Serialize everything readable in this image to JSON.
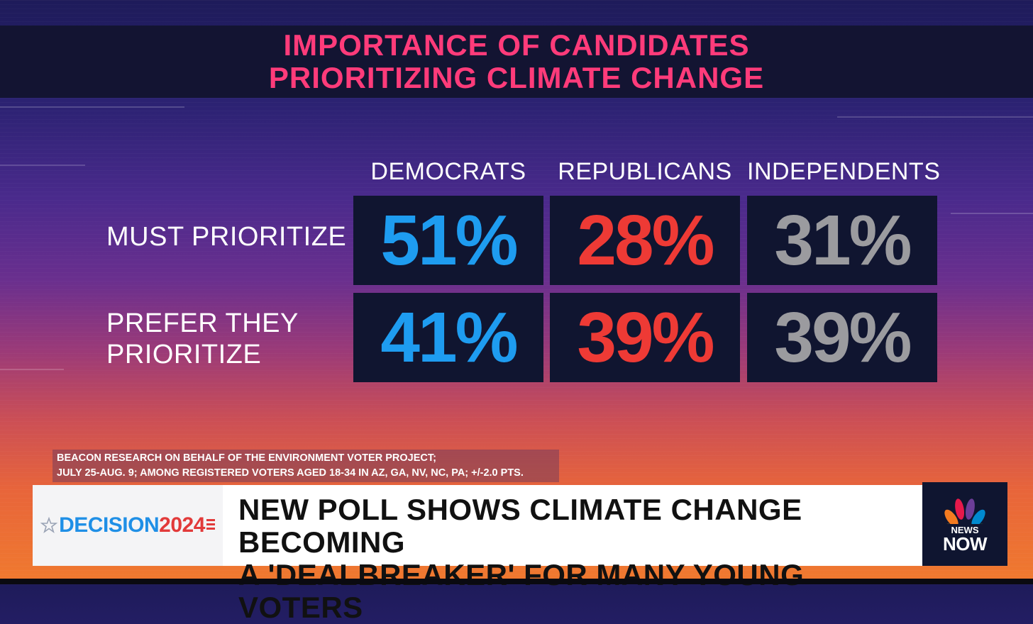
{
  "title": {
    "line1": "IMPORTANCE OF CANDIDATES",
    "line2": "PRIORITIZING CLIMATE CHANGE",
    "color": "#ff3b7a"
  },
  "chart_data": {
    "type": "table",
    "title": "IMPORTANCE OF CANDIDATES PRIORITIZING CLIMATE CHANGE",
    "columns": [
      "DEMOCRATS",
      "REPUBLICANS",
      "INDEPENDENTS"
    ],
    "rows": [
      {
        "label": "MUST PRIORITIZE",
        "label_lines": [
          "MUST PRIORITIZE"
        ],
        "values": [
          "51%",
          "28%",
          "31%"
        ]
      },
      {
        "label": "PREFER THEY PRIORITIZE",
        "label_lines": [
          "PREFER THEY",
          "PRIORITIZE"
        ],
        "values": [
          "41%",
          "39%",
          "39%"
        ]
      }
    ],
    "column_colors": [
      "#1e9cf0",
      "#ee3a35",
      "#9b9b9f"
    ]
  },
  "source": {
    "line1": "BEACON RESEARCH ON BEHALF OF THE ENVIRONMENT VOTER PROJECT;",
    "line2": "JULY 25-AUG. 9; AMONG REGISTERED VOTERS AGED 18-34 IN AZ, GA, NV, NC, PA; +/-2.0 PTS."
  },
  "ticker": {
    "logo_word": "DECISION",
    "logo_year": "2024",
    "headline_line1": "NEW POLL SHOWS CLIMATE CHANGE BECOMING",
    "headline_line2": "A 'DEALBREAKER' FOR MANY YOUNG VOTERS",
    "network_news": "NEWS",
    "network_now": "NOW"
  }
}
